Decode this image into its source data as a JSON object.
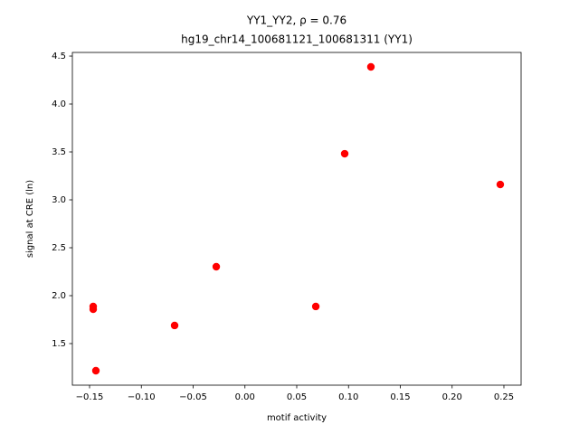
{
  "chart_data": {
    "type": "scatter",
    "title": "YY1_YY2, ρ = 0.76",
    "subtitle": "hg19_chr14_100681121_100681311 (YY1)",
    "x_label": "motif activity",
    "y_label": "signal at CRE (ln)",
    "color": "#ff0000",
    "grid": false,
    "x": [
      -0.1465,
      -0.1465,
      -0.1439,
      -0.0679,
      -0.0277,
      0.0684,
      0.0963,
      0.1216,
      0.2465
    ],
    "values": [
      1.887,
      1.858,
      1.217,
      1.689,
      2.302,
      1.887,
      3.481,
      4.387,
      3.16
    ],
    "xlim": [
      -0.1666,
      0.2666
    ],
    "ylim": [
      1.066,
      4.538
    ],
    "xticks": [
      {
        "value": -0.15,
        "label": "−0.15"
      },
      {
        "value": -0.1,
        "label": "−0.10"
      },
      {
        "value": -0.05,
        "label": "−0.05"
      },
      {
        "value": 0,
        "label": "0.00"
      },
      {
        "value": 0.05,
        "label": "0.05"
      },
      {
        "value": 0.1,
        "label": "0.10"
      },
      {
        "value": 0.15,
        "label": "0.15"
      },
      {
        "value": 0.2,
        "label": "0.20"
      },
      {
        "value": 0.25,
        "label": "0.25"
      }
    ],
    "yticks": [
      1.5,
      {
        "value": 2,
        "label": "2.0"
      },
      2.5,
      {
        "value": 3,
        "label": "3.0"
      },
      3.5,
      {
        "value": 4,
        "label": "4.0"
      },
      4.5
    ]
  }
}
